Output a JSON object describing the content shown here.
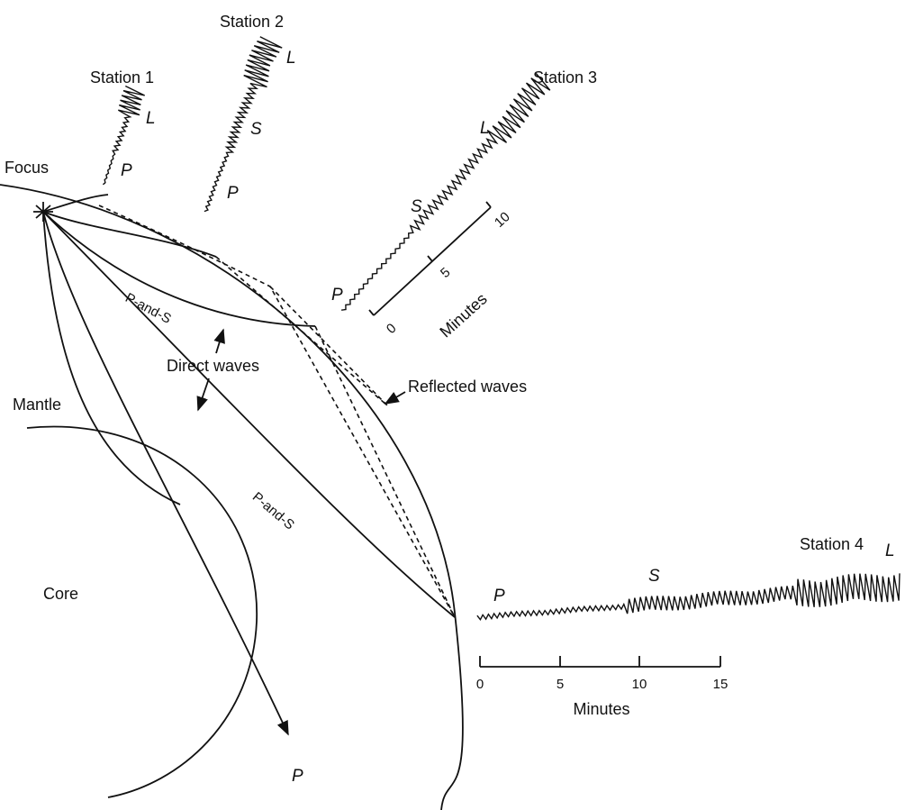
{
  "labels": {
    "focus": "Focus",
    "mantle": "Mantle",
    "core": "Core",
    "direct_waves": "Direct waves",
    "reflected_waves": "Reflected waves",
    "p_and_s_upper": "P-and-S",
    "p_and_s_lower": "P-and-S",
    "core_p": "P"
  },
  "stations": [
    {
      "name": "Station 1",
      "phases": [
        "P",
        "L"
      ]
    },
    {
      "name": "Station 2",
      "phases": [
        "P",
        "S",
        "L"
      ]
    },
    {
      "name": "Station 3",
      "phases": [
        "P",
        "S",
        "L"
      ],
      "scale": {
        "ticks": [
          "0",
          "5",
          "10"
        ],
        "unit": "Minutes"
      }
    },
    {
      "name": "Station 4",
      "phases": [
        "P",
        "S",
        "L"
      ],
      "scale": {
        "ticks": [
          "0",
          "5",
          "10",
          "15"
        ],
        "unit": "Minutes"
      }
    }
  ]
}
